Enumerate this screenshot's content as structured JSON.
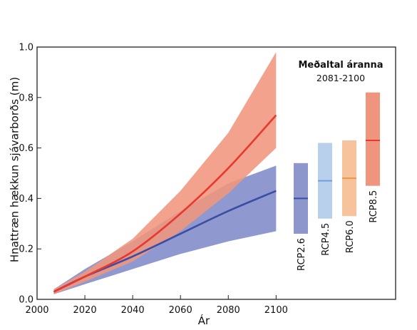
{
  "chart_data": {
    "type": "area",
    "xlabel": "Ár",
    "ylabel": "Hnattræn hækkun sjávarborðs (m)",
    "xlim": [
      2000,
      2150
    ],
    "ylim": [
      0,
      1.0
    ],
    "xticks": [
      2000,
      2020,
      2040,
      2060,
      2080,
      2100
    ],
    "yticks": [
      0.0,
      0.2,
      0.4,
      0.6,
      0.8,
      1.0
    ],
    "xtick_labels": [
      "2000",
      "2020",
      "2040",
      "2060",
      "2080",
      "2100"
    ],
    "ytick_labels": [
      "0.0",
      "0.2",
      "0.4",
      "0.6",
      "0.8",
      "1.0"
    ],
    "grid": false,
    "series": [
      {
        "name": "RCP2.6",
        "color": "#3b4ea6",
        "band_color": "#8f99cf",
        "x": [
          2007,
          2020,
          2040,
          2060,
          2080,
          2100
        ],
        "mean": [
          0.03,
          0.09,
          0.17,
          0.26,
          0.35,
          0.43
        ],
        "lower": [
          0.02,
          0.06,
          0.12,
          0.18,
          0.23,
          0.27
        ],
        "upper": [
          0.04,
          0.12,
          0.23,
          0.35,
          0.46,
          0.53
        ]
      },
      {
        "name": "RCP8.5",
        "color": "#e8382f",
        "band_color": "#f0957d",
        "x": [
          2007,
          2020,
          2040,
          2060,
          2080,
          2100
        ],
        "mean": [
          0.03,
          0.09,
          0.19,
          0.34,
          0.52,
          0.73
        ],
        "lower": [
          0.02,
          0.07,
          0.15,
          0.27,
          0.42,
          0.6
        ],
        "upper": [
          0.04,
          0.11,
          0.24,
          0.43,
          0.66,
          0.98
        ]
      }
    ],
    "box": {
      "title": "Meðaltal áranna",
      "subtitle": "2081-2100"
    },
    "bars": [
      {
        "label": "RCP2.6",
        "low": 0.26,
        "mean": 0.4,
        "high": 0.54,
        "fill": "#8d97cc",
        "line": "#3b4ea6"
      },
      {
        "label": "RCP4.5",
        "low": 0.32,
        "mean": 0.47,
        "high": 0.62,
        "fill": "#b8d0ec",
        "line": "#6fa0dc"
      },
      {
        "label": "RCP6.0",
        "low": 0.33,
        "mean": 0.48,
        "high": 0.63,
        "fill": "#f6c39c",
        "line": "#f0944a"
      },
      {
        "label": "RCP8.5",
        "low": 0.45,
        "mean": 0.63,
        "high": 0.82,
        "fill": "#f0957d",
        "line": "#e8382f"
      }
    ]
  }
}
